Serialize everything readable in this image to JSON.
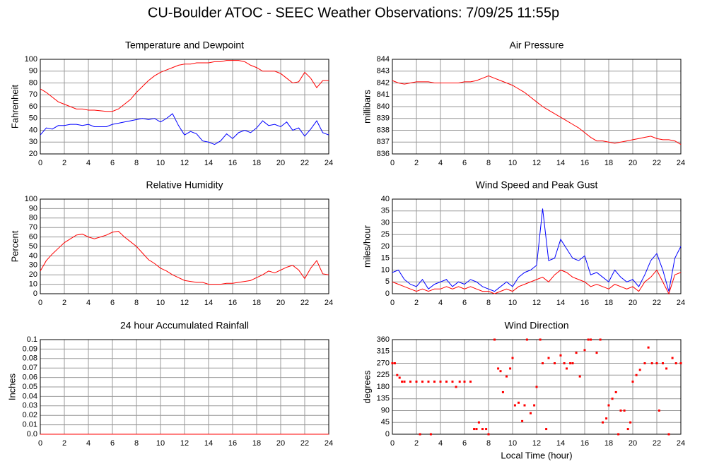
{
  "title": "CU-Boulder ATOC - SEEC Weather Observations: 7/09/25 11:55p",
  "chart_data": [
    {
      "type": "line",
      "title": "Temperature and Dewpoint",
      "y_label": "Fahrenheit",
      "x": [
        0,
        0.5,
        1,
        1.5,
        2,
        2.5,
        3,
        3.5,
        4,
        4.5,
        5,
        5.5,
        6,
        6.5,
        7,
        7.5,
        8,
        8.5,
        9,
        9.5,
        10,
        10.5,
        11,
        11.5,
        12,
        12.5,
        13,
        13.5,
        14,
        14.5,
        15,
        15.5,
        16,
        16.5,
        17,
        17.5,
        18,
        18.5,
        19,
        19.5,
        20,
        20.5,
        21,
        21.5,
        22,
        22.5,
        23,
        23.5,
        24
      ],
      "series": [
        {
          "color": "#ff0000",
          "values": [
            75,
            72,
            68,
            64,
            62,
            60,
            58,
            58,
            57,
            57,
            56.5,
            56,
            56,
            58,
            62,
            66,
            72,
            77,
            82,
            86,
            89,
            91,
            93,
            95,
            96,
            96,
            97,
            97,
            97,
            98,
            98,
            99,
            99,
            99,
            98,
            95,
            93,
            90,
            90,
            90,
            88,
            84,
            80,
            81,
            89,
            84,
            76,
            82,
            82
          ]
        },
        {
          "color": "#0000ff",
          "values": [
            36,
            42,
            41,
            44,
            44,
            45,
            45,
            44,
            45,
            43,
            43,
            43,
            45,
            46,
            47,
            48,
            49,
            50,
            49,
            50,
            47,
            50,
            54,
            44,
            36,
            39,
            37,
            31,
            30,
            28,
            31,
            37,
            33,
            38,
            40,
            38,
            42,
            48,
            44,
            45,
            43,
            47,
            40,
            42,
            35,
            41,
            48,
            38,
            36
          ]
        }
      ],
      "xlim": [
        0,
        24
      ],
      "xticks": [
        0,
        2,
        4,
        6,
        8,
        10,
        12,
        14,
        16,
        18,
        20,
        22,
        24
      ],
      "ylim": [
        20,
        100
      ],
      "yticks": [
        20,
        30,
        40,
        50,
        60,
        70,
        80,
        90,
        100
      ],
      "grid": true
    },
    {
      "type": "line",
      "title": "Air Pressure",
      "y_label": "millibars",
      "x": [
        0,
        0.5,
        1,
        1.5,
        2,
        2.5,
        3,
        3.5,
        4,
        4.5,
        5,
        5.5,
        6,
        6.5,
        7,
        7.5,
        8,
        8.5,
        9,
        9.5,
        10,
        10.5,
        11,
        11.5,
        12,
        12.5,
        13,
        13.5,
        14,
        14.5,
        15,
        15.5,
        16,
        16.5,
        17,
        17.5,
        18,
        18.5,
        19,
        19.5,
        20,
        20.5,
        21,
        21.5,
        22,
        22.5,
        23,
        23.5,
        24
      ],
      "series": [
        {
          "color": "#ff0000",
          "values": [
            842.2,
            842.0,
            841.9,
            842.0,
            842.1,
            842.1,
            842.1,
            842.0,
            842.0,
            842.0,
            842.0,
            842.0,
            842.1,
            842.1,
            842.2,
            842.4,
            842.6,
            842.4,
            842.2,
            842.0,
            841.8,
            841.5,
            841.2,
            840.8,
            840.4,
            840.0,
            839.7,
            839.4,
            839.1,
            838.8,
            838.5,
            838.2,
            837.8,
            837.4,
            837.1,
            837.1,
            837.0,
            836.9,
            837.0,
            837.1,
            837.2,
            837.3,
            837.4,
            837.5,
            837.3,
            837.2,
            837.2,
            837.1,
            836.8
          ]
        }
      ],
      "xlim": [
        0,
        24
      ],
      "xticks": [
        0,
        2,
        4,
        6,
        8,
        10,
        12,
        14,
        16,
        18,
        20,
        22,
        24
      ],
      "ylim": [
        836,
        844
      ],
      "yticks": [
        836,
        837,
        838,
        839,
        840,
        841,
        842,
        843,
        844
      ],
      "grid": true
    },
    {
      "type": "line",
      "title": "Relative Humidity",
      "y_label": "Percent",
      "x": [
        0,
        0.5,
        1,
        1.5,
        2,
        2.5,
        3,
        3.5,
        4,
        4.5,
        5,
        5.5,
        6,
        6.5,
        7,
        7.5,
        8,
        8.5,
        9,
        9.5,
        10,
        10.5,
        11,
        11.5,
        12,
        12.5,
        13,
        13.5,
        14,
        14.5,
        15,
        15.5,
        16,
        16.5,
        17,
        17.5,
        18,
        18.5,
        19,
        19.5,
        20,
        20.5,
        21,
        21.5,
        22,
        22.5,
        23,
        23.5,
        24
      ],
      "series": [
        {
          "color": "#ff0000",
          "values": [
            24,
            35,
            42,
            48,
            54,
            58,
            62,
            63,
            60,
            58,
            60,
            62,
            65,
            66,
            60,
            55,
            50,
            43,
            36,
            32,
            27,
            24,
            20,
            17,
            14,
            13,
            12,
            12,
            10,
            10,
            10,
            11,
            11,
            12,
            13,
            14,
            17,
            20,
            24,
            22,
            25,
            28,
            30,
            25,
            16,
            27,
            35,
            21,
            20
          ]
        }
      ],
      "xlim": [
        0,
        24
      ],
      "xticks": [
        0,
        2,
        4,
        6,
        8,
        10,
        12,
        14,
        16,
        18,
        20,
        22,
        24
      ],
      "ylim": [
        0,
        100
      ],
      "yticks": [
        0,
        10,
        20,
        30,
        40,
        50,
        60,
        70,
        80,
        90,
        100
      ],
      "grid": true
    },
    {
      "type": "line",
      "title": "Wind Speed and Peak Gust",
      "y_label": "miles/hour",
      "x": [
        0,
        0.5,
        1,
        1.5,
        2,
        2.5,
        3,
        3.5,
        4,
        4.5,
        5,
        5.5,
        6,
        6.5,
        7,
        7.5,
        8,
        8.5,
        9,
        9.5,
        10,
        10.5,
        11,
        11.5,
        12,
        12.5,
        13,
        13.5,
        14,
        14.5,
        15,
        15.5,
        16,
        16.5,
        17,
        17.5,
        18,
        18.5,
        19,
        19.5,
        20,
        20.5,
        21,
        21.5,
        22,
        22.5,
        23,
        23.5,
        24
      ],
      "series": [
        {
          "color": "#0000ff",
          "values": [
            9,
            10,
            6,
            4,
            3,
            6,
            2,
            4,
            5,
            6,
            3,
            5,
            4,
            6,
            5,
            3,
            2,
            1,
            3,
            5,
            3,
            7,
            9,
            10,
            12,
            36,
            14,
            15,
            23,
            19,
            15,
            14,
            16,
            8,
            9,
            7,
            5,
            10,
            7,
            5,
            6,
            3,
            8,
            14,
            17,
            10,
            1,
            15,
            20
          ]
        },
        {
          "color": "#ff0000",
          "values": [
            5,
            4,
            3,
            2,
            1,
            2,
            1,
            2,
            2,
            3,
            2,
            3,
            2,
            3,
            2,
            1,
            1,
            0,
            1,
            2,
            1,
            3,
            4,
            5,
            6,
            7,
            5,
            8,
            10,
            9,
            7,
            6,
            5,
            3,
            4,
            3,
            2,
            4,
            3,
            2,
            3,
            1,
            5,
            7,
            10,
            5,
            0,
            8,
            9
          ]
        }
      ],
      "xlim": [
        0,
        24
      ],
      "xticks": [
        0,
        2,
        4,
        6,
        8,
        10,
        12,
        14,
        16,
        18,
        20,
        22,
        24
      ],
      "ylim": [
        0,
        40
      ],
      "yticks": [
        0,
        5,
        10,
        15,
        20,
        25,
        30,
        35,
        40
      ],
      "grid": true
    },
    {
      "type": "line",
      "title": "24 hour Accumulated Rainfall",
      "y_label": "Inches",
      "x": [
        0,
        24
      ],
      "series": [
        {
          "color": "#ff0000",
          "values": [
            0,
            0
          ]
        }
      ],
      "xlim": [
        0,
        24
      ],
      "xticks": [
        0,
        2,
        4,
        6,
        8,
        10,
        12,
        14,
        16,
        18,
        20,
        22,
        24
      ],
      "ylim": [
        0,
        0.1
      ],
      "yticks": [
        {
          "value": 0,
          "label": "0.0"
        },
        0.01,
        0.02,
        0.03,
        0.04,
        0.05,
        0.06,
        0.07,
        0.08,
        0.09,
        0.1
      ],
      "grid": true
    },
    {
      "type": "scatter",
      "title": "Wind Direction",
      "y_label": "degrees",
      "x_label": "Local Time (hour)",
      "x": [
        0,
        0.2,
        0.4,
        0.6,
        0.8,
        1,
        1.5,
        2,
        2.3,
        2.5,
        3,
        3.2,
        3.5,
        4,
        4.5,
        5,
        5.3,
        5.6,
        6,
        6.5,
        6.8,
        7,
        7.2,
        7.5,
        7.8,
        8,
        8.5,
        8.8,
        9,
        9.2,
        9.5,
        9.8,
        10,
        10.2,
        10.5,
        10.8,
        11,
        11.2,
        11.5,
        11.8,
        12,
        12.3,
        12.5,
        12.8,
        13,
        13.5,
        14,
        14.3,
        14.5,
        14.8,
        15,
        15.3,
        15.6,
        16,
        16.3,
        16.5,
        17,
        17.3,
        17.5,
        17.8,
        18,
        18.3,
        18.6,
        18.8,
        19,
        19.3,
        19.6,
        19.8,
        20,
        20.3,
        20.6,
        21,
        21.3,
        21.6,
        22,
        22.2,
        22.5,
        22.8,
        23,
        23.3,
        23.6,
        24
      ],
      "series": [
        {
          "color": "#ff0000",
          "values": [
            270,
            270,
            225,
            215,
            200,
            200,
            200,
            200,
            0,
            200,
            200,
            0,
            200,
            200,
            200,
            200,
            180,
            200,
            200,
            200,
            20,
            20,
            45,
            20,
            20,
            0,
            360,
            250,
            240,
            160,
            220,
            250,
            290,
            110,
            120,
            50,
            110,
            360,
            80,
            110,
            180,
            360,
            270,
            20,
            290,
            270,
            300,
            270,
            250,
            270,
            270,
            310,
            220,
            320,
            360,
            360,
            310,
            360,
            45,
            60,
            110,
            135,
            160,
            0,
            90,
            90,
            20,
            45,
            200,
            225,
            245,
            270,
            330,
            270,
            270,
            90,
            270,
            250,
            0,
            290,
            270,
            270
          ]
        }
      ],
      "xlim": [
        0,
        24
      ],
      "xticks": [
        0,
        2,
        4,
        6,
        8,
        10,
        12,
        14,
        16,
        18,
        20,
        22,
        24
      ],
      "ylim": [
        0,
        360
      ],
      "yticks": [
        0,
        45,
        90,
        135,
        180,
        225,
        270,
        315,
        360
      ],
      "grid": true
    }
  ]
}
